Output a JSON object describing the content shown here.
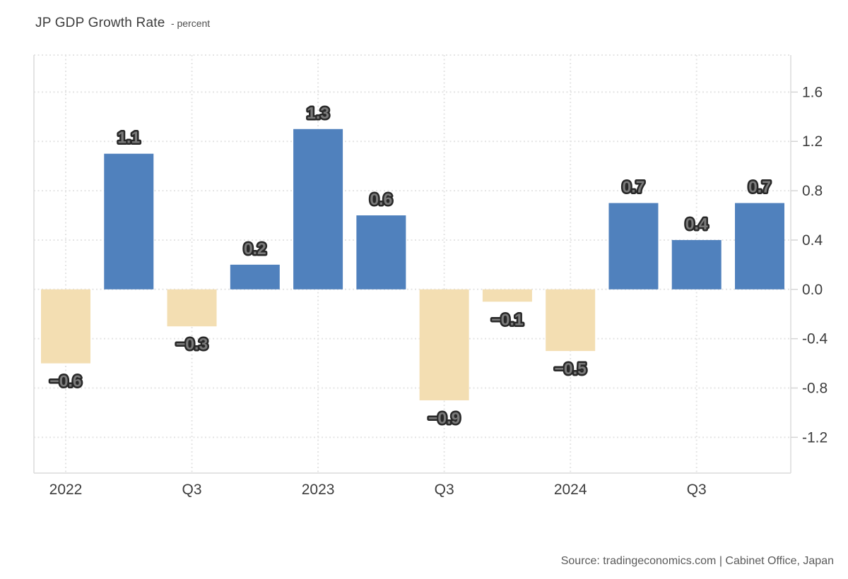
{
  "header": {
    "title": "JP GDP Growth Rate",
    "subtitle": "- percent"
  },
  "footer": {
    "source": "Source: tradingeconomics.com | Cabinet Office, Japan"
  },
  "chart_data": {
    "type": "bar",
    "title": "JP GDP Growth Rate",
    "unit_label": "percent",
    "categories": [
      "2022 Q1",
      "2022 Q2",
      "2022 Q3",
      "2022 Q4",
      "2023 Q1",
      "2023 Q2",
      "2023 Q3",
      "2023 Q4",
      "2024 Q1",
      "2024 Q2",
      "2024 Q3",
      "2024 Q4"
    ],
    "values": [
      -0.6,
      1.1,
      -0.3,
      0.2,
      1.3,
      0.6,
      -0.9,
      -0.1,
      -0.5,
      0.7,
      0.4,
      0.7
    ],
    "data_labels": [
      "-0.6",
      "1.1",
      "-0.3",
      "0.2",
      "1.3",
      "0.6",
      "-0.9",
      "-0.1",
      "-0.5",
      "0.7",
      "0.4",
      "0.7"
    ],
    "xticks": [
      {
        "index": 0,
        "label": "2022"
      },
      {
        "index": 2,
        "label": "Q3"
      },
      {
        "index": 4,
        "label": "2023"
      },
      {
        "index": 6,
        "label": "Q3"
      },
      {
        "index": 8,
        "label": "2024"
      },
      {
        "index": 10,
        "label": "Q3"
      }
    ],
    "yticks": [
      1.6,
      1.2,
      0.8,
      0.4,
      0.0,
      -0.4,
      -0.8,
      -1.2
    ],
    "ytick_labels": [
      "1.6",
      "1.2",
      "0.8",
      "0.4",
      "0.0",
      "-0.4",
      "-0.8",
      "-1.2"
    ],
    "ylim": [
      -1.49,
      1.9
    ],
    "grid": "dotted",
    "legend": "none",
    "yaxis_side": "right",
    "colors": {
      "positive_bar": "#5081BD",
      "negative_bar": "#F3DEB2",
      "grid_line": "#e4e4e4",
      "axis_line": "#dcdcdc",
      "tick_mark": "#d5d5d5",
      "axis_text": "#3d3d3d",
      "data_label_fill": "#7a7a7a",
      "data_label_outline": "#282828"
    }
  }
}
